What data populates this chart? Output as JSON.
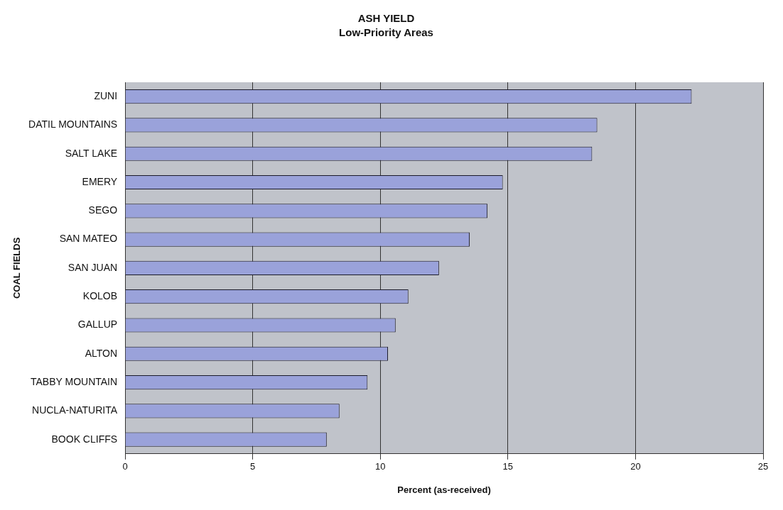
{
  "chart_data": {
    "type": "bar",
    "orientation": "horizontal",
    "title": "ASH YIELD",
    "subtitle": "Low-Priority Areas",
    "xlabel": "Percent (as-received)",
    "ylabel": "COAL FIELDS",
    "categories": [
      "ZUNI",
      "DATIL MOUNTAINS",
      "SALT LAKE",
      "EMERY",
      "SEGO",
      "SAN MATEO",
      "SAN JUAN",
      "KOLOB",
      "GALLUP",
      "ALTON",
      "TABBY MOUNTAIN",
      "NUCLA-NATURITA",
      "BOOK CLIFFS"
    ],
    "values": [
      22.2,
      18.5,
      18.3,
      14.8,
      14.2,
      13.5,
      12.3,
      11.1,
      10.6,
      10.3,
      9.5,
      8.4,
      7.9
    ],
    "color": "#9aa2da",
    "xlim": [
      0,
      25
    ],
    "xticks": [
      0,
      5,
      10,
      15,
      20,
      25
    ],
    "grid": "x",
    "legend": false
  }
}
